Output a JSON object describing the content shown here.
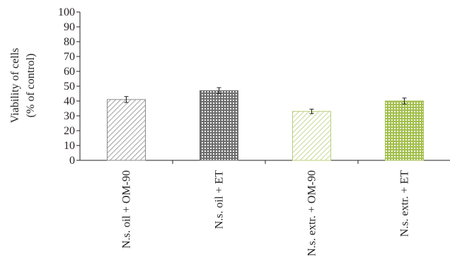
{
  "chart_data": {
    "type": "bar",
    "ylabel_lines": [
      "Viability of cells",
      "(% of control)"
    ],
    "ylim": [
      0,
      100
    ],
    "yticks": [
      0,
      10,
      20,
      30,
      40,
      50,
      60,
      70,
      80,
      90,
      100
    ],
    "ytick_labels": [
      "0",
      "10",
      "20",
      "30",
      "40",
      "50",
      "60",
      "70",
      "80",
      "90",
      "100"
    ],
    "categories": [
      "N.s. oil + OM-90",
      "N.s. oil + ET",
      "N.s. extr. + OM-90",
      "N.s. extr. + ET"
    ],
    "values": [
      41,
      47,
      33,
      40
    ],
    "errors": [
      2,
      2,
      1.5,
      2
    ],
    "bars": [
      {
        "pattern": "hatch",
        "color": "#8a8a8a"
      },
      {
        "pattern": "dots",
        "color": "#6d6d6d"
      },
      {
        "pattern": "hatch",
        "color": "#b9cf7a"
      },
      {
        "pattern": "dots",
        "color": "#a3bf4c"
      }
    ],
    "grid": false,
    "legend": "none"
  }
}
